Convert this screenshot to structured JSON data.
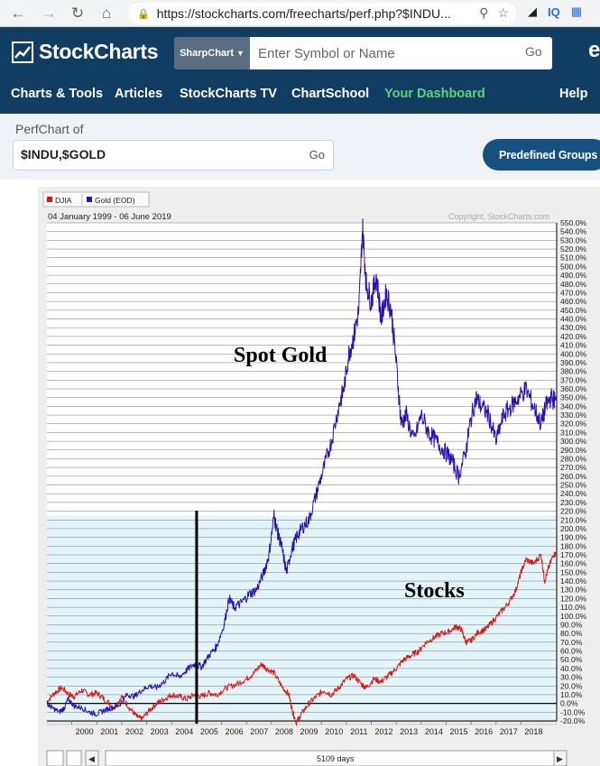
{
  "browser": {
    "url": "https://stockcharts.com/freecharts/perf.php?$INDU...",
    "ext_label": "IQ"
  },
  "site": {
    "logo_text": "StockCharts",
    "chart_type_select": "SharpChart",
    "search_placeholder": "Enter Symbol or Name",
    "search_go": "Go",
    "nav": [
      "Charts & Tools",
      "Articles",
      "StockCharts TV",
      "ChartSchool",
      "Your Dashboard",
      "Help"
    ],
    "highlight_color": "#5cd37a"
  },
  "perfchart": {
    "label": "PerfChart of",
    "symbols_value": "$INDU,$GOLD",
    "go_label": "Go",
    "predefined_label": "Predefined Groups"
  },
  "chart_data": {
    "type": "line",
    "date_range": "04 January 1999 - 06 June 2019",
    "copyright": "Copyright, StockCharts.com",
    "legend": [
      {
        "name": "DJIA",
        "color": "#dd1111"
      },
      {
        "name": "Gold (EOD)",
        "color": "#2a0fb5"
      }
    ],
    "annotations": [
      "Spot Gold",
      "Stocks"
    ],
    "x_ticks": [
      "2000",
      "2001",
      "2002",
      "2003",
      "2004",
      "2005",
      "2006",
      "2007",
      "2008",
      "2009",
      "2010",
      "2011",
      "2012",
      "2013",
      "2014",
      "2015",
      "2016",
      "2017",
      "2018"
    ],
    "y_ticks": [
      "550.0%",
      "540.0%",
      "530.0%",
      "520.0%",
      "510.0%",
      "500.0%",
      "490.0%",
      "480.0%",
      "470.0%",
      "460.0%",
      "450.0%",
      "440.0%",
      "430.0%",
      "420.0%",
      "410.0%",
      "400.0%",
      "390.0%",
      "380.0%",
      "370.0%",
      "360.0%",
      "350.0%",
      "340.0%",
      "330.0%",
      "320.0%",
      "310.0%",
      "300.0%",
      "290.0%",
      "280.0%",
      "270.0%",
      "260.0%",
      "250.0%",
      "240.0%",
      "230.0%",
      "220.0%",
      "210.0%",
      "200.0%",
      "190.0%",
      "180.0%",
      "170.0%",
      "160.0%",
      "150.0%",
      "140.0%",
      "130.0%",
      "120.0%",
      "110.0%",
      "100.0%",
      "90.0%",
      "80.0%",
      "70.0%",
      "60.0%",
      "50.0%",
      "40.0%",
      "30.0%",
      "20.0%",
      "10.0%",
      "0.0%",
      "-10.0%",
      "-20.0%"
    ],
    "ylim": [
      -20,
      550
    ],
    "xlim": [
      1999.0,
      2019.43
    ],
    "marker_year": 2005.0,
    "series": [
      {
        "name": "DJIA",
        "color": "#dd1111",
        "x": [
          1999.0,
          1999.3,
          1999.6,
          1999.9,
          2000.1,
          2000.4,
          2000.7,
          2001.0,
          2001.3,
          2001.7,
          2002.0,
          2002.3,
          2002.6,
          2002.8,
          2003.1,
          2003.4,
          2003.7,
          2004.0,
          2004.3,
          2004.6,
          2004.9,
          2005.2,
          2005.5,
          2005.8,
          2006.2,
          2006.6,
          2007.0,
          2007.3,
          2007.6,
          2007.8,
          2008.1,
          2008.4,
          2008.7,
          2008.85,
          2009.0,
          2009.2,
          2009.5,
          2009.8,
          2010.1,
          2010.4,
          2010.7,
          2011.0,
          2011.3,
          2011.6,
          2011.8,
          2012.1,
          2012.4,
          2012.7,
          2013.0,
          2013.3,
          2013.6,
          2013.9,
          2014.2,
          2014.5,
          2014.8,
          2015.1,
          2015.4,
          2015.6,
          2015.8,
          2016.0,
          2016.3,
          2016.6,
          2016.9,
          2017.2,
          2017.5,
          2017.8,
          2018.0,
          2018.2,
          2018.5,
          2018.8,
          2018.95,
          2019.1,
          2019.3,
          2019.43
        ],
        "values": [
          2,
          12,
          18,
          10,
          8,
          15,
          10,
          12,
          5,
          -5,
          8,
          -5,
          -15,
          -18,
          -8,
          0,
          5,
          10,
          8,
          5,
          10,
          8,
          12,
          10,
          18,
          22,
          28,
          35,
          45,
          40,
          35,
          20,
          10,
          -10,
          -22,
          -12,
          0,
          8,
          15,
          10,
          18,
          28,
          32,
          22,
          18,
          28,
          25,
          32,
          40,
          50,
          55,
          60,
          70,
          75,
          80,
          82,
          88,
          85,
          70,
          72,
          82,
          85,
          95,
          105,
          115,
          130,
          150,
          165,
          160,
          170,
          140,
          155,
          170,
          172
        ]
      },
      {
        "name": "Gold (EOD)",
        "color": "#2a0fb5",
        "x": [
          1999.0,
          1999.2,
          1999.5,
          1999.7,
          1999.85,
          2000.1,
          2000.4,
          2000.7,
          2001.0,
          2001.3,
          2001.6,
          2001.9,
          2002.2,
          2002.5,
          2002.8,
          2003.1,
          2003.4,
          2003.7,
          2004.0,
          2004.3,
          2004.6,
          2004.9,
          2005.2,
          2005.5,
          2005.8,
          2006.1,
          2006.3,
          2006.5,
          2006.8,
          2007.1,
          2007.4,
          2007.7,
          2007.9,
          2008.1,
          2008.25,
          2008.4,
          2008.6,
          2008.8,
          2009.0,
          2009.2,
          2009.5,
          2009.8,
          2010.1,
          2010.4,
          2010.7,
          2010.9,
          2011.1,
          2011.3,
          2011.5,
          2011.65,
          2011.8,
          2012.0,
          2012.2,
          2012.4,
          2012.6,
          2012.8,
          2013.0,
          2013.2,
          2013.4,
          2013.7,
          2014.0,
          2014.3,
          2014.6,
          2014.9,
          2015.2,
          2015.5,
          2015.8,
          2015.95,
          2016.2,
          2016.4,
          2016.7,
          2017.0,
          2017.3,
          2017.6,
          2017.9,
          2018.2,
          2018.5,
          2018.8,
          2019.0,
          2019.2,
          2019.43
        ],
        "values": [
          0,
          -5,
          -10,
          -5,
          5,
          -3,
          -5,
          -10,
          -12,
          -8,
          -5,
          -2,
          10,
          8,
          15,
          20,
          18,
          25,
          35,
          30,
          38,
          45,
          42,
          55,
          65,
          90,
          120,
          110,
          115,
          125,
          130,
          150,
          170,
          215,
          195,
          180,
          150,
          175,
          190,
          200,
          210,
          240,
          270,
          300,
          340,
          360,
          400,
          420,
          450,
          545,
          480,
          460,
          490,
          440,
          470,
          450,
          390,
          320,
          330,
          300,
          330,
          310,
          300,
          290,
          280,
          260,
          290,
          320,
          350,
          340,
          330,
          300,
          330,
          340,
          350,
          360,
          340,
          320,
          340,
          350,
          345
        ]
      }
    ]
  }
}
